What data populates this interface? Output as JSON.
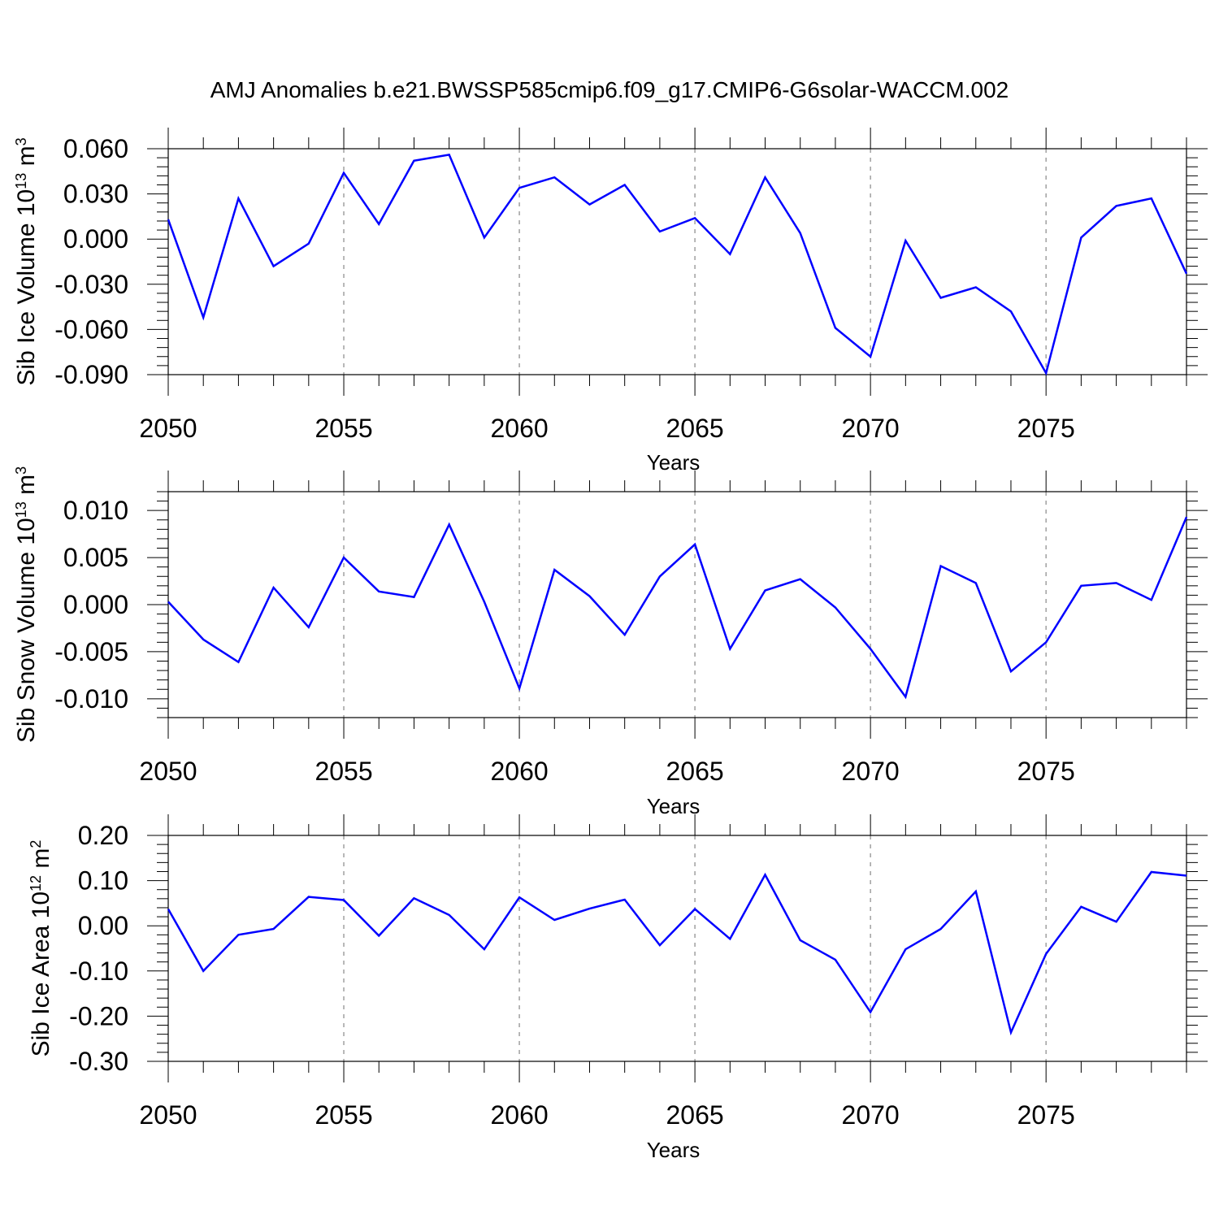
{
  "chart_data": {
    "title": "AMJ Anomalies b.e21.BWSSP585cmip6.f09_g17.CMIP6-G6solar-WACCM.002",
    "panels": [
      {
        "id": "ice-volume",
        "type": "line",
        "ylabel": {
          "main": "Sib Ice Volume 10",
          "sup1": "13",
          "mid": " m",
          "sup2": "3"
        },
        "xlabel": "Years",
        "xlim": [
          2050,
          2079
        ],
        "ylim": [
          -0.09,
          0.06
        ],
        "yticks": [
          -0.09,
          -0.06,
          -0.03,
          0.0,
          0.03,
          0.06
        ],
        "ytick_labels": [
          "-0.090",
          "-0.060",
          "-0.030",
          "0.000",
          "0.030",
          "0.060"
        ],
        "xticks": [
          2050,
          2055,
          2060,
          2065,
          2070,
          2075
        ],
        "xtick_labels": [
          "2050",
          "2055",
          "2060",
          "2065",
          "2070",
          "2075"
        ],
        "grid_x": true,
        "x": [
          2050,
          2051,
          2052,
          2053,
          2054,
          2055,
          2056,
          2057,
          2058,
          2059,
          2060,
          2061,
          2062,
          2063,
          2064,
          2065,
          2066,
          2067,
          2068,
          2069,
          2070,
          2071,
          2072,
          2073,
          2074,
          2075,
          2076,
          2077,
          2078,
          2079
        ],
        "values": [
          0.013,
          -0.052,
          0.027,
          -0.018,
          -0.003,
          0.044,
          0.01,
          0.052,
          0.056,
          0.001,
          0.034,
          0.041,
          0.023,
          0.036,
          0.005,
          0.014,
          -0.01,
          0.041,
          0.004,
          -0.059,
          -0.078,
          -0.001,
          -0.039,
          -0.032,
          -0.048,
          -0.089,
          0.001,
          0.022,
          0.027,
          -0.023
        ],
        "color": "#0000ff"
      },
      {
        "id": "snow-volume",
        "type": "line",
        "ylabel": {
          "main": "Sib Snow Volume 10",
          "sup1": "13",
          "mid": " m",
          "sup2": "3"
        },
        "xlabel": "Years",
        "xlim": [
          2050,
          2079
        ],
        "ylim": [
          -0.012,
          0.012
        ],
        "yticks": [
          -0.01,
          -0.005,
          0.0,
          0.005,
          0.01
        ],
        "ytick_labels": [
          "-0.010",
          "-0.005",
          "0.000",
          "0.005",
          "0.010"
        ],
        "xticks": [
          2050,
          2055,
          2060,
          2065,
          2070,
          2075
        ],
        "xtick_labels": [
          "2050",
          "2055",
          "2060",
          "2065",
          "2070",
          "2075"
        ],
        "grid_x": true,
        "x": [
          2050,
          2051,
          2052,
          2053,
          2054,
          2055,
          2056,
          2057,
          2058,
          2059,
          2060,
          2061,
          2062,
          2063,
          2064,
          2065,
          2066,
          2067,
          2068,
          2069,
          2070,
          2071,
          2072,
          2073,
          2074,
          2075,
          2076,
          2077,
          2078,
          2079
        ],
        "values": [
          0.0003,
          -0.0037,
          -0.0061,
          0.0018,
          -0.0024,
          0.005,
          0.0014,
          0.0008,
          0.0085,
          0.0003,
          -0.0089,
          0.0037,
          0.0009,
          -0.0032,
          0.003,
          0.0064,
          -0.0047,
          0.0015,
          0.0027,
          -0.0003,
          -0.0047,
          -0.0098,
          0.0041,
          0.0023,
          -0.0071,
          -0.004,
          0.002,
          0.0023,
          0.0005,
          0.0093
        ],
        "color": "#0000ff"
      },
      {
        "id": "ice-area",
        "type": "line",
        "ylabel": {
          "main": "Sib Ice Area 10",
          "sup1": "12",
          "mid": " m",
          "sup2": "2"
        },
        "xlabel": "Years",
        "xlim": [
          2050,
          2079
        ],
        "ylim": [
          -0.3,
          0.2
        ],
        "yticks": [
          -0.3,
          -0.2,
          -0.1,
          0.0,
          0.1,
          0.2
        ],
        "ytick_labels": [
          "-0.30",
          "-0.20",
          "-0.10",
          "0.00",
          "0.10",
          "0.20"
        ],
        "xticks": [
          2050,
          2055,
          2060,
          2065,
          2070,
          2075
        ],
        "xtick_labels": [
          "2050",
          "2055",
          "2060",
          "2065",
          "2070",
          "2075"
        ],
        "grid_x": true,
        "x": [
          2050,
          2051,
          2052,
          2053,
          2054,
          2055,
          2056,
          2057,
          2058,
          2059,
          2060,
          2061,
          2062,
          2063,
          2064,
          2065,
          2066,
          2067,
          2068,
          2069,
          2070,
          2071,
          2072,
          2073,
          2074,
          2075,
          2076,
          2077,
          2078,
          2079
        ],
        "values": [
          0.037,
          -0.1,
          -0.02,
          -0.007,
          0.064,
          0.057,
          -0.022,
          0.061,
          0.024,
          -0.052,
          0.063,
          0.013,
          0.038,
          0.058,
          -0.043,
          0.037,
          -0.029,
          0.113,
          -0.032,
          -0.075,
          -0.191,
          -0.052,
          -0.007,
          0.076,
          -0.236,
          -0.062,
          0.042,
          0.009,
          0.119,
          0.111
        ],
        "color": "#0000ff"
      }
    ]
  }
}
